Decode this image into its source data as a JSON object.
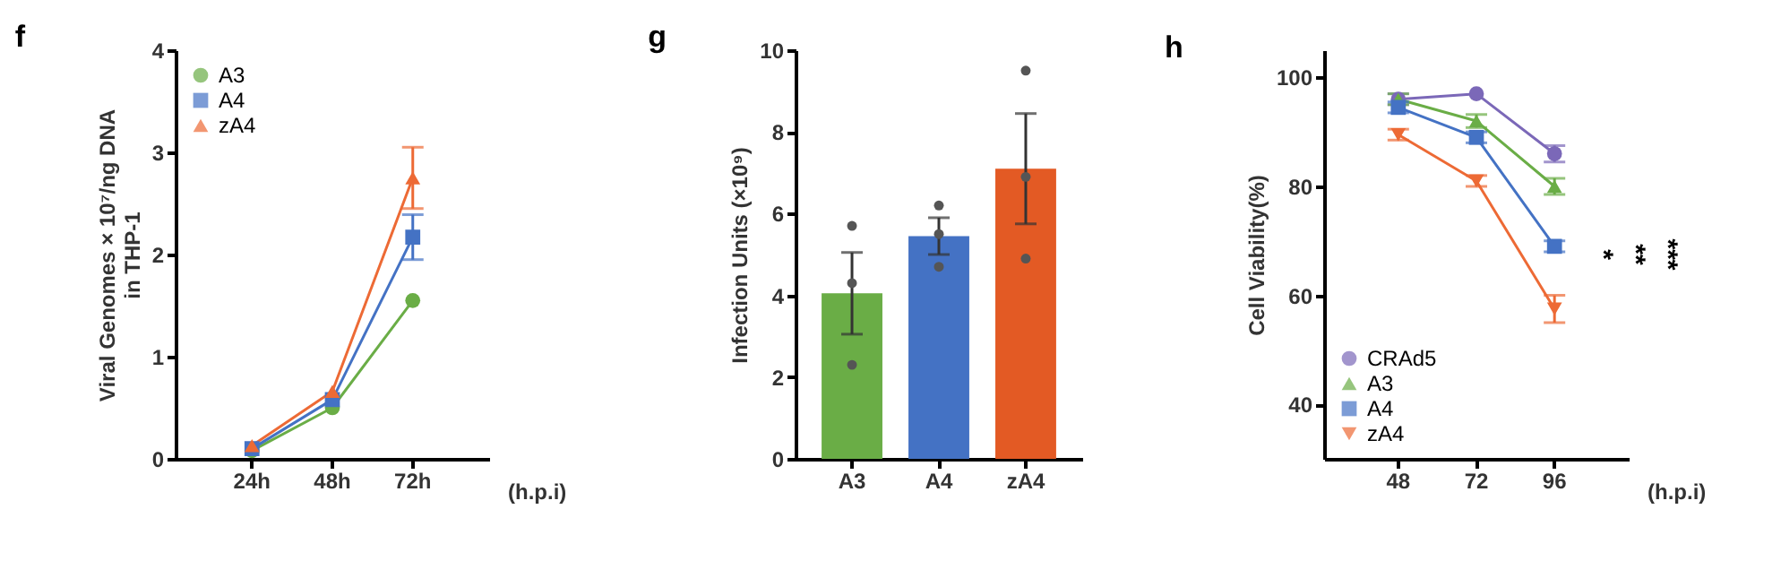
{
  "chart_data": [
    {
      "type": "line",
      "title": "f",
      "xlabel": "(h.p.i)",
      "ylabel": "Viral Genomes × 10⁷/ng DNA\nin THP-1",
      "categories": [
        "24h",
        "48h",
        "72h"
      ],
      "ylim": [
        0,
        4
      ],
      "yticks": [
        0,
        1,
        2,
        3,
        4
      ],
      "grid": false,
      "legend": "top left",
      "series": [
        {
          "name": "A3",
          "color": "#6aad46",
          "marker": "circle",
          "values": [
            0.08,
            0.5,
            1.55
          ]
        },
        {
          "name": "A4",
          "color": "#4472c4",
          "marker": "square",
          "values": [
            0.1,
            0.58,
            2.17
          ],
          "errors": [
            null,
            null,
            0.22
          ]
        },
        {
          "name": "zA4",
          "color": "#ed6a35",
          "marker": "triangle",
          "values": [
            0.13,
            0.66,
            2.75
          ],
          "errors": [
            null,
            null,
            0.3
          ]
        }
      ]
    },
    {
      "type": "bar",
      "title": "g",
      "ylabel": "Infection Units (×10⁹)",
      "categories": [
        "A3",
        "A4",
        "zA4"
      ],
      "ylim": [
        0,
        10
      ],
      "yticks": [
        0,
        2,
        4,
        6,
        8,
        10
      ],
      "grid": false,
      "series": [
        {
          "type": "bar",
          "colors": [
            "#6aad46",
            "#4472c4",
            "#e35a24"
          ],
          "values": [
            4.05,
            5.45,
            7.1
          ],
          "errors": [
            1.0,
            0.45,
            1.35
          ]
        },
        {
          "type": "scatter",
          "color": "#555555",
          "x": [
            "A3",
            "A3",
            "A3",
            "A4",
            "A4",
            "A4",
            "zA4",
            "zA4",
            "zA4"
          ],
          "values": [
            5.7,
            4.3,
            2.3,
            6.2,
            5.5,
            4.7,
            9.5,
            6.9,
            4.9
          ]
        }
      ]
    },
    {
      "type": "line",
      "title": "h",
      "xlabel": "(h.p.i)",
      "ylabel": "Cell Viability(%)",
      "categories": [
        "48",
        "72",
        "96"
      ],
      "ylim": [
        30,
        105
      ],
      "yticks": [
        40,
        60,
        80,
        100
      ],
      "grid": false,
      "legend": "bottom left",
      "annotations": [
        "*",
        "**",
        "***"
      ],
      "series": [
        {
          "name": "CRAd5",
          "color": "#7b68b8",
          "marker": "circle",
          "values": [
            96,
            97,
            86
          ],
          "errors": [
            1,
            null,
            1.5
          ]
        },
        {
          "name": "A3",
          "color": "#6aad46",
          "marker": "triangle",
          "values": [
            96,
            92,
            80
          ],
          "errors": [
            1,
            1.2,
            1.5
          ]
        },
        {
          "name": "A4",
          "color": "#4472c4",
          "marker": "square",
          "values": [
            94.5,
            89,
            69
          ],
          "errors": [
            1,
            1,
            1
          ]
        },
        {
          "name": "zA4",
          "color": "#ed6a35",
          "marker": "triangle-down",
          "values": [
            89.5,
            81,
            57.5
          ],
          "errors": [
            1,
            1,
            2.5
          ]
        }
      ]
    }
  ]
}
